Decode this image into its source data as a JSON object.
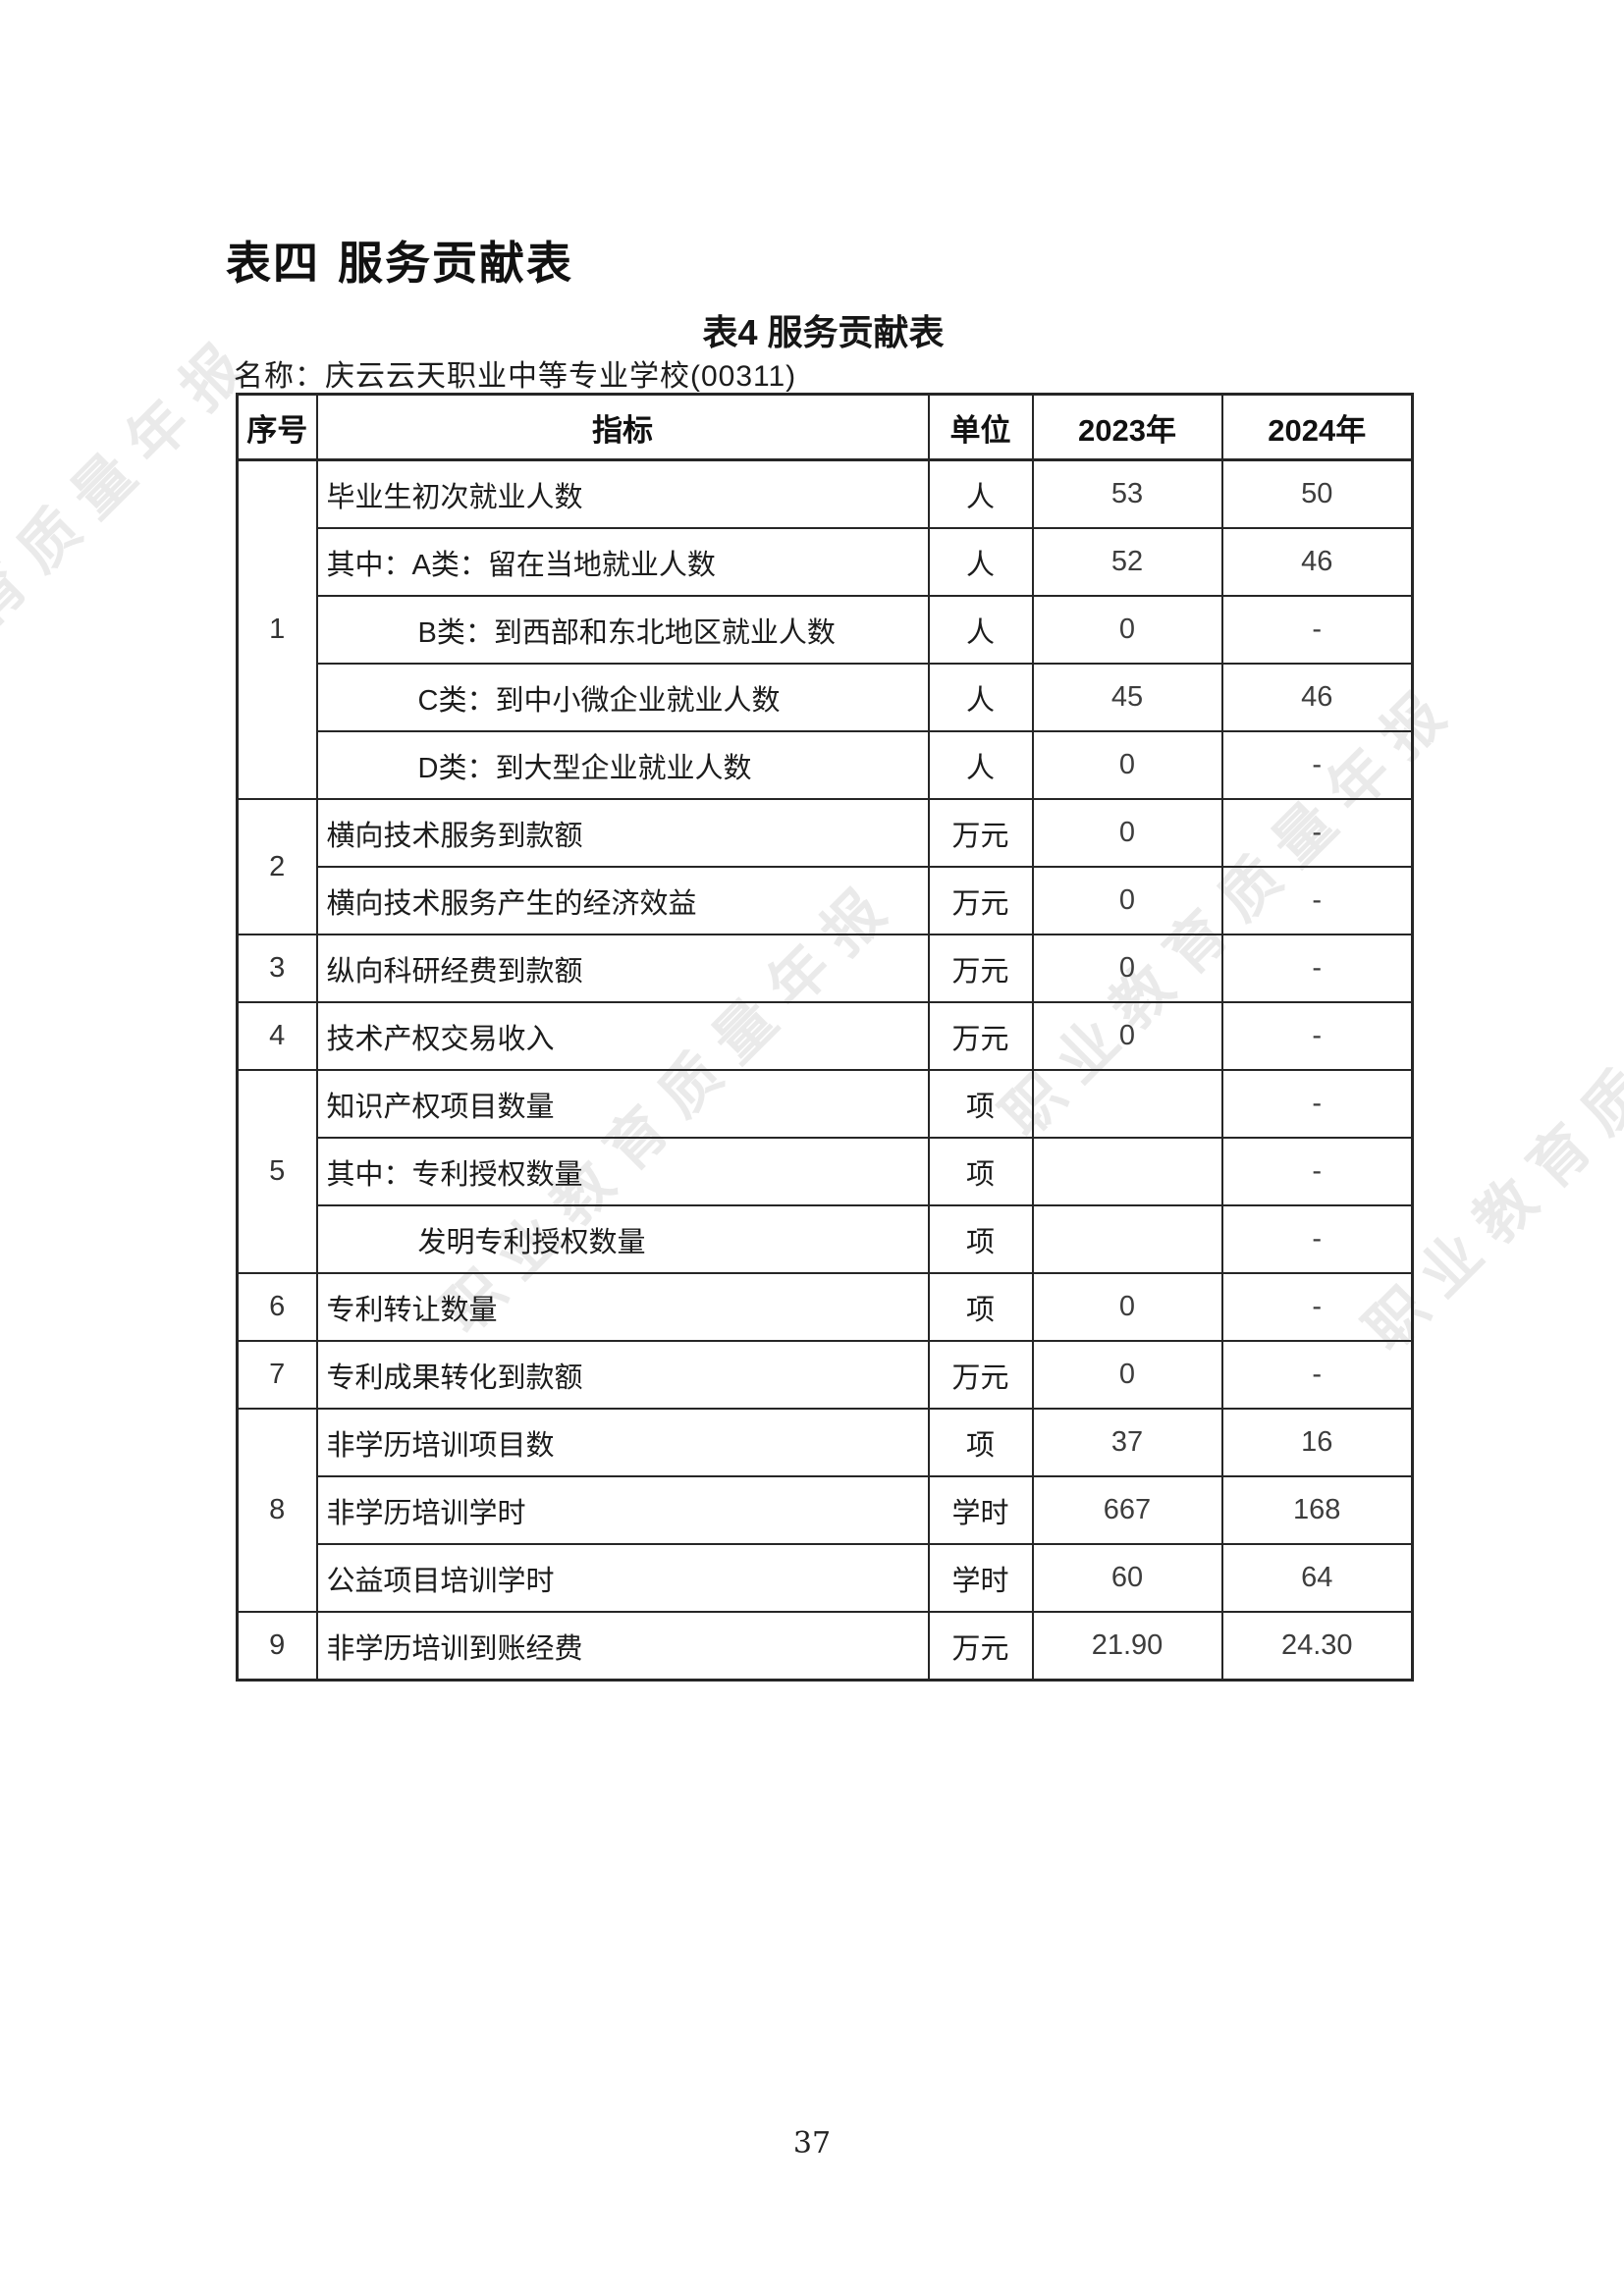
{
  "page": {
    "heading": "表四 服务贡献表",
    "table_title": "表4 服务贡献表",
    "name_label": "名称：",
    "name_value": "庆云云天职业中等专业学校(00311)",
    "page_number": "37"
  },
  "watermark": {
    "text": "职业教育质量年报",
    "color": "#000000",
    "opacity": 0.08
  },
  "table": {
    "headers": [
      "序号",
      "指标",
      "单位",
      "2023年",
      "2024年"
    ],
    "groups": [
      {
        "no": "1",
        "rows": [
          {
            "indicator": "毕业生初次就业人数",
            "indent": 0,
            "unit": "人",
            "y2023": "53",
            "y2024": "50"
          },
          {
            "indicator": "其中：A类：留在当地就业人数",
            "indent": 0,
            "unit": "人",
            "y2023": "52",
            "y2024": "46"
          },
          {
            "indicator": "B类：到西部和东北地区就业人数",
            "indent": 1,
            "unit": "人",
            "y2023": "0",
            "y2024": "-"
          },
          {
            "indicator": "C类：到中小微企业就业人数",
            "indent": 1,
            "unit": "人",
            "y2023": "45",
            "y2024": "46"
          },
          {
            "indicator": "D类：到大型企业就业人数",
            "indent": 1,
            "unit": "人",
            "y2023": "0",
            "y2024": "-"
          }
        ]
      },
      {
        "no": "2",
        "rows": [
          {
            "indicator": "横向技术服务到款额",
            "indent": 0,
            "unit": "万元",
            "y2023": "0",
            "y2024": "-"
          },
          {
            "indicator": "横向技术服务产生的经济效益",
            "indent": 0,
            "unit": "万元",
            "y2023": "0",
            "y2024": "-"
          }
        ]
      },
      {
        "no": "3",
        "rows": [
          {
            "indicator": "纵向科研经费到款额",
            "indent": 0,
            "unit": "万元",
            "y2023": "0",
            "y2024": "-"
          }
        ]
      },
      {
        "no": "4",
        "rows": [
          {
            "indicator": "技术产权交易收入",
            "indent": 0,
            "unit": "万元",
            "y2023": "0",
            "y2024": "-"
          }
        ]
      },
      {
        "no": "5",
        "rows": [
          {
            "indicator": "知识产权项目数量",
            "indent": 0,
            "unit": "项",
            "y2023": "",
            "y2024": "-"
          },
          {
            "indicator": "其中：专利授权数量",
            "indent": 0,
            "unit": "项",
            "y2023": "",
            "y2024": "-"
          },
          {
            "indicator": "发明专利授权数量",
            "indent": 1,
            "unit": "项",
            "y2023": "",
            "y2024": "-"
          }
        ]
      },
      {
        "no": "6",
        "rows": [
          {
            "indicator": "专利转让数量",
            "indent": 0,
            "unit": "项",
            "y2023": "0",
            "y2024": "-"
          }
        ]
      },
      {
        "no": "7",
        "rows": [
          {
            "indicator": "专利成果转化到款额",
            "indent": 0,
            "unit": "万元",
            "y2023": "0",
            "y2024": "-"
          }
        ]
      },
      {
        "no": "8",
        "rows": [
          {
            "indicator": "非学历培训项目数",
            "indent": 0,
            "unit": "项",
            "y2023": "37",
            "y2024": "16"
          },
          {
            "indicator": "非学历培训学时",
            "indent": 0,
            "unit": "学时",
            "y2023": "667",
            "y2024": "168"
          },
          {
            "indicator": "公益项目培训学时",
            "indent": 0,
            "unit": "学时",
            "y2023": "60",
            "y2024": "64"
          }
        ]
      },
      {
        "no": "9",
        "rows": [
          {
            "indicator": "非学历培训到账经费",
            "indent": 0,
            "unit": "万元",
            "y2023": "21.90",
            "y2024": "24.30"
          }
        ]
      }
    ]
  }
}
